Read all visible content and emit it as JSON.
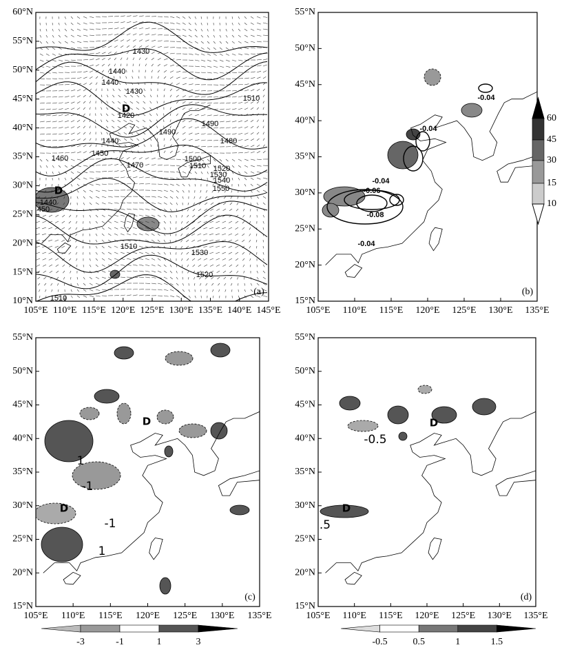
{
  "panels": [
    {
      "label": "(a)",
      "xticks": [
        "105°E",
        "110°E",
        "115°E",
        "120°E",
        "125°E",
        "130°E",
        "135°E",
        "140°E",
        "145°E"
      ],
      "yticks": [
        "60°N",
        "55°N",
        "50°N",
        "45°N",
        "40°N",
        "35°N",
        "30°N",
        "25°N",
        "20°N",
        "15°N",
        "10°N"
      ],
      "annotations": [
        "1430",
        "1440",
        "1440",
        "1430",
        "D",
        "1420",
        "1510",
        "1490",
        "1490",
        "1480",
        "1440",
        "1450",
        "1460",
        "1470",
        "1500",
        "1510",
        "1520",
        "1530",
        "1540",
        "1550",
        "D",
        "1440",
        "450",
        "1510",
        "1530",
        "1520",
        "1510"
      ]
    },
    {
      "label": "(b)",
      "xticks": [
        "105°E",
        "110°E",
        "115°E",
        "120°E",
        "125°E",
        "130°E",
        "135°E"
      ],
      "yticks": [
        "55°N",
        "50°N",
        "45°N",
        "40°N",
        "35°N",
        "30°N",
        "25°N",
        "20°N",
        "15°N"
      ],
      "annotations": [
        "-0.04",
        "-0.04",
        "-0.04",
        "-0.06",
        "-0.08",
        "-0.04"
      ],
      "colorbar": [
        "60",
        "45",
        "30",
        "15",
        "10"
      ]
    },
    {
      "label": "(c)",
      "xticks": [
        "105°E",
        "110°E",
        "115°E",
        "120°E",
        "125°E",
        "130°E",
        "135°E"
      ],
      "yticks": [
        "55°N",
        "50°N",
        "45°N",
        "40°N",
        "35°N",
        "30°N",
        "25°N",
        "20°N",
        "15°N"
      ],
      "annotations": [
        "1",
        "-1",
        "D",
        "-1",
        "1",
        "D"
      ],
      "colorbar": [
        "-3",
        "-1",
        "1",
        "3"
      ]
    },
    {
      "label": "(d)",
      "xticks": [
        "105°E",
        "110°E",
        "115°E",
        "120°E",
        "125°E",
        "130°E",
        "135°E"
      ],
      "yticks": [
        "55°N",
        "50°N",
        "45°N",
        "40°N",
        "35°N",
        "30°N",
        "25°N",
        "20°N",
        "15°N"
      ],
      "annotations": [
        "-0.5",
        "D",
        "D",
        ".5"
      ],
      "colorbar": [
        "-0.5",
        "0.5",
        "1",
        "1.5"
      ]
    }
  ]
}
